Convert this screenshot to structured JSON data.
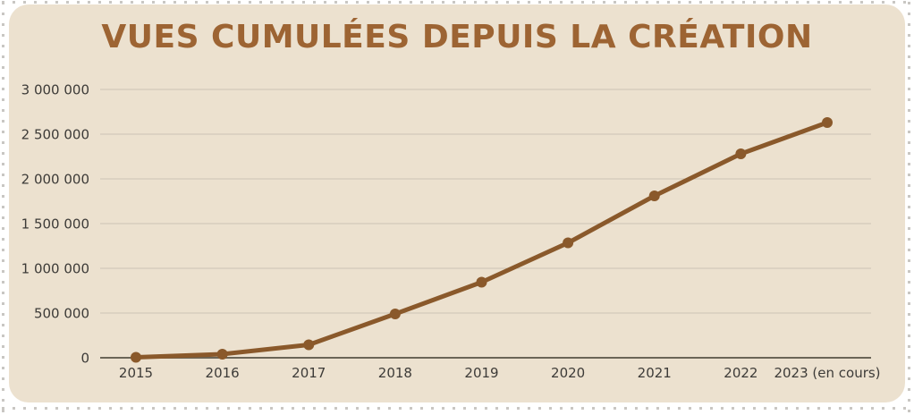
{
  "frame": {
    "background": "#ffffff",
    "card_background": "#ece1cf",
    "perforation_dot_color": "#c9c7c3"
  },
  "title": {
    "text": "VUES CUMULÉES DEPUIS LA CRÉATION",
    "color": "#9d6433"
  },
  "chart_data": {
    "type": "line",
    "title": "VUES CUMULÉES DEPUIS LA CRÉATION",
    "categories": [
      "2015",
      "2016",
      "2017",
      "2018",
      "2019",
      "2020",
      "2021",
      "2022",
      "2023 (en cours)"
    ],
    "values": [
      5000,
      40000,
      145000,
      490000,
      845000,
      1285000,
      1810000,
      2280000,
      2630000
    ],
    "xlabel": "",
    "ylabel": "",
    "ylim": [
      0,
      3000000
    ],
    "ytick_interval": 500000,
    "ytick_labels": [
      "0",
      "500 000",
      "1 000 000",
      "1 500 000",
      "2 000 000",
      "2 500 000",
      "3 000 000"
    ],
    "grid": true,
    "legend": false,
    "line_color": "#8a592b",
    "marker_color": "#8a592b",
    "gridline_color": "#ccc4b4",
    "axis_line_color": "#6b6557",
    "tick_label_color": "#3d3b38"
  }
}
